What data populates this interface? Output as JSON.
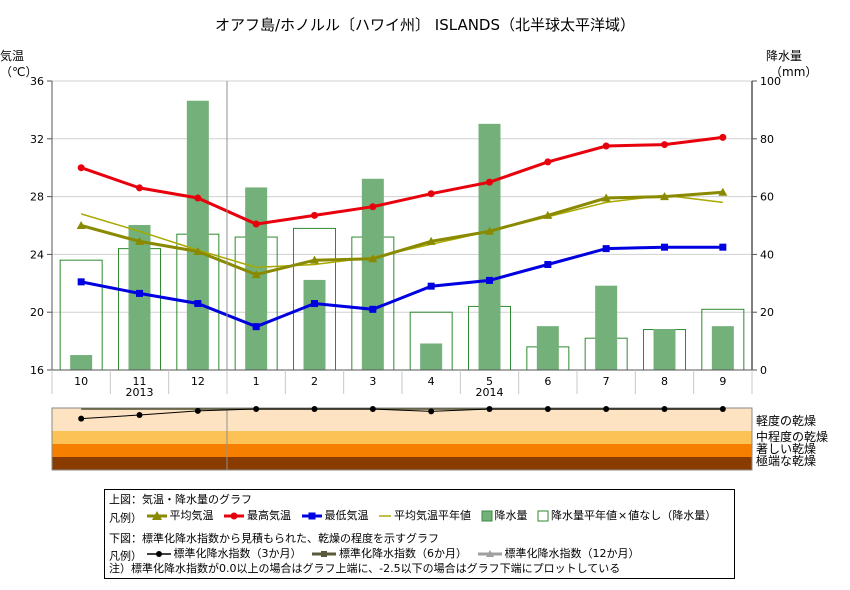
{
  "chart_data": {
    "type": "bar+line",
    "title": "オアフ島/ホノルル〔ハワイ州〕 ISLANDS（北半球太平洋域）",
    "y_left_label_1": "気温",
    "y_left_label_2": "（℃）",
    "y_right_label_1": "降水量",
    "y_right_label_2": "（mm）",
    "y_left_range": [
      16,
      36
    ],
    "y_left_ticks": [
      16,
      20,
      24,
      28,
      32,
      36
    ],
    "y_right_range": [
      0,
      100
    ],
    "y_right_ticks": [
      0,
      20,
      40,
      60,
      80,
      100
    ],
    "categories": [
      "10",
      "11",
      "12",
      "1",
      "2",
      "3",
      "4",
      "5",
      "6",
      "7",
      "8",
      "9"
    ],
    "years": [
      {
        "label": "2013",
        "category_index": 1
      },
      {
        "label": "2014",
        "category_index": 7
      }
    ],
    "precip": [
      5,
      50,
      93,
      63,
      31,
      66,
      9,
      85,
      15,
      29,
      14,
      15
    ],
    "precip_normal": [
      38,
      42,
      47,
      46,
      49,
      46,
      20,
      22,
      8,
      11,
      14,
      21
    ],
    "temp_max": [
      30.0,
      28.6,
      27.9,
      26.1,
      26.7,
      27.3,
      28.2,
      29.0,
      30.4,
      31.5,
      31.6,
      32.1
    ],
    "temp_avg": [
      26.0,
      24.9,
      24.2,
      22.6,
      23.6,
      23.7,
      24.9,
      25.6,
      26.7,
      27.9,
      28.0,
      28.3
    ],
    "temp_min": [
      22.1,
      21.3,
      20.6,
      19.0,
      20.6,
      20.2,
      21.8,
      22.2,
      23.3,
      24.4,
      24.5,
      24.5
    ],
    "temp_avg_normal": [
      26.8,
      25.6,
      24.3,
      23.1,
      23.3,
      23.8,
      24.7,
      25.6,
      26.6,
      27.6,
      28.1,
      27.6
    ],
    "spi_3": [
      -0.4,
      -0.25,
      -0.08,
      0.0,
      0.0,
      0.0,
      -0.1,
      0.0,
      0.0,
      0.0,
      0.0,
      0.0
    ],
    "spi_6": [
      0.0,
      0.0,
      0.0,
      0.0,
      0.0,
      0.0,
      0.0,
      0.0,
      0.0,
      0.0,
      0.0,
      0.0
    ],
    "spi_12": [
      0.0,
      0.0,
      0.0,
      0.0,
      0.0,
      0.0,
      0.0,
      0.0,
      0.0,
      0.0,
      0.0,
      0.0
    ],
    "spi_range": [
      -2.5,
      0.0
    ],
    "dryness_bands": [
      {
        "label": "軽度の乾燥",
        "color": "#fde3c2"
      },
      {
        "label": "中程度の乾燥",
        "color": "#fdc255"
      },
      {
        "label": "著しい乾燥",
        "color": "#f77f00"
      },
      {
        "label": "極端な乾燥",
        "color": "#8a3c00"
      }
    ],
    "colors": {
      "temp_max": "#e8000c",
      "temp_avg": "#8a8a00",
      "temp_min": "#0000e0",
      "temp_avg_normal": "#a8a800",
      "precip": "#74b07a",
      "precip_edge": "#3e8a3e",
      "precip_normal_edge": "#2e8a2e",
      "spi_3": "#000000",
      "spi_6": "#5a5a3a",
      "spi_12": "#a0a0a0"
    }
  },
  "legend": {
    "line1": "上図：気温・降水量のグラフ",
    "hanrei": "凡例）",
    "avg_temp": "平均気温",
    "max_temp": "最高気温",
    "min_temp": "最低気温",
    "avg_normal": "平均気温平年値",
    "precip": "降水量",
    "precip_normal": "降水量平年値",
    "no_value_mark": "×",
    "no_value": "値なし（降水量）",
    "line2": "下図：標準化降水指数から見積もられた、乾燥の程度を示すグラフ",
    "hanrei2": "凡例）",
    "spi3": "標準化降水指数（3か月）",
    "spi6": "標準化降水指数（6か月）",
    "spi12": "標準化降水指数（12か月）",
    "note": "注）標準化降水指数が0.0以上の場合はグラフ上端に、-2.5以下の場合はグラフ下端にプロットしている"
  }
}
